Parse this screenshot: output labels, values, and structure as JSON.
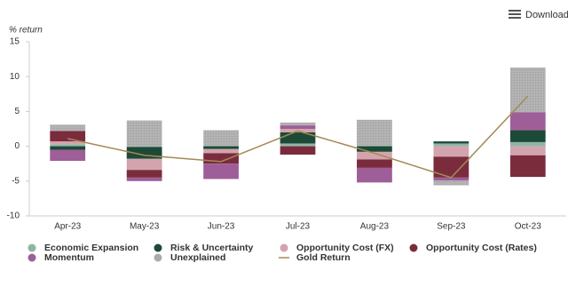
{
  "toolbar": {
    "button": "Download"
  },
  "chart_data": {
    "type": "stacked_bar_line",
    "y_axis_label": "% return",
    "categories": [
      "Apr-23",
      "May-23",
      "Jun-23",
      "Jul-23",
      "Aug-23",
      "Sep-23",
      "Oct-23"
    ],
    "series": [
      {
        "name": "Economic Expansion",
        "color": "#8fb5a5",
        "values": [
          0.3,
          -0.1,
          0.1,
          0.4,
          0.1,
          0.4,
          0.6
        ]
      },
      {
        "name": "Risk & Uncertainty",
        "color": "#1d4a36",
        "values": [
          -0.5,
          -1.7,
          -0.4,
          1.6,
          -0.8,
          0.3,
          1.7
        ]
      },
      {
        "name": "Opportunity Cost (FX)",
        "color": "#d3a4ae",
        "values": [
          0.4,
          -1.6,
          -0.6,
          0.5,
          -1.1,
          -1.5,
          -1.3
        ]
      },
      {
        "name": "Opportunity Cost (Rates)",
        "color": "#7a2c3d",
        "values": [
          1.5,
          -1.1,
          -1.5,
          -1.2,
          -1.2,
          -3.0,
          -3.1
        ]
      },
      {
        "name": "Momentum",
        "color": "#9e5e98",
        "values": [
          -1.6,
          -0.5,
          -2.2,
          0.5,
          -2.1,
          -0.4,
          2.6
        ]
      },
      {
        "name": "Unexplained",
        "color": "#ababab",
        "values": [
          0.9,
          3.7,
          2.2,
          0.4,
          3.7,
          -0.7,
          6.4
        ]
      }
    ],
    "line": {
      "name": "Gold Return",
      "color": "#a38a55",
      "values": [
        1.1,
        -1.3,
        -2.2,
        2.2,
        -1.0,
        -4.5,
        7.2
      ]
    },
    "ylim": [
      -10,
      15
    ],
    "yticks": [
      -10,
      -5,
      0,
      5,
      10,
      15
    ],
    "grid": false
  }
}
